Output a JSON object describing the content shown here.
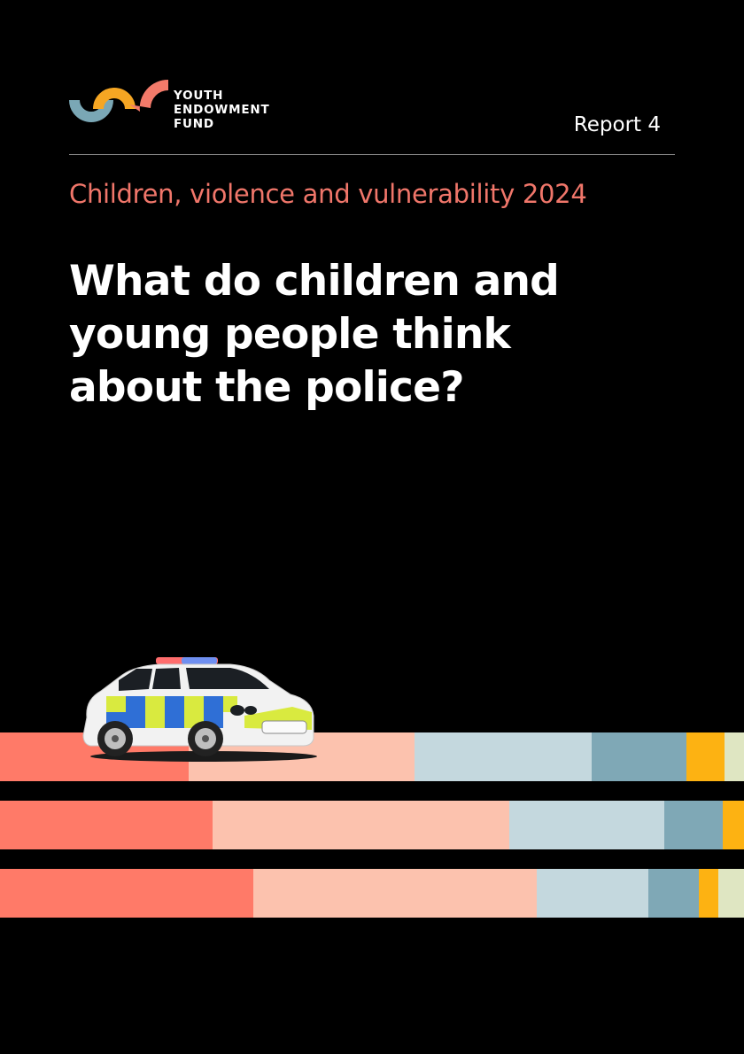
{
  "logo": {
    "lines": [
      "YOUTH",
      "ENDOWMENT",
      "FUND"
    ],
    "colors": {
      "teal": "#7aa7b5",
      "orange": "#f5a623",
      "coral": "#f37a6a"
    }
  },
  "header": {
    "report_label": "Report 4"
  },
  "subtitle": "Children, violence and vulnerability 2024",
  "title": {
    "lines": [
      "What do children and",
      "young people think",
      "about the police?"
    ]
  },
  "palette": [
    "#ff7a68",
    "#fcc2ae",
    "#c4d8de",
    "#7fa8b6",
    "#fdb212",
    "#dfe6c2"
  ],
  "decorative_bars": [
    {
      "shares": [
        0.254,
        0.303,
        0.238,
        0.128,
        0.051,
        0.026
      ]
    },
    {
      "shares": [
        0.286,
        0.399,
        0.208,
        0.079,
        0.028,
        0.0
      ]
    },
    {
      "shares": [
        0.34,
        0.381,
        0.151,
        0.067,
        0.026,
        0.035
      ]
    }
  ]
}
